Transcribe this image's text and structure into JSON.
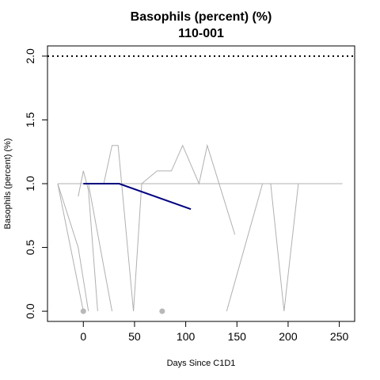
{
  "chart_data": {
    "type": "line",
    "title": "Basophils (percent) (%)",
    "subtitle": "110-001",
    "xlabel": "Days Since C1D1",
    "ylabel": "Basophils (percent) (%)",
    "xlim": [
      -35,
      265
    ],
    "ylim": [
      -0.08,
      2.08
    ],
    "x_ticks": [
      0,
      50,
      100,
      150,
      200,
      250
    ],
    "y_ticks": [
      0.0,
      0.5,
      1.0,
      1.5,
      2.0
    ],
    "y_tick_labels": [
      "0.0",
      "0.5",
      "1.0",
      "1.5",
      "2.0"
    ],
    "reference_line": {
      "y": 2.0,
      "style": "dotted",
      "color": "#000000"
    },
    "background_series": [
      {
        "color": "#b0b0b0",
        "points": [
          [
            -25,
            1.0
          ],
          [
            0,
            0.0
          ]
        ]
      },
      {
        "color": "#b0b0b0",
        "points": [
          [
            -25,
            1.0
          ],
          [
            -5,
            0.5
          ],
          [
            5,
            0.0
          ]
        ]
      },
      {
        "color": "#b0b0b0",
        "points": [
          [
            -5,
            0.9
          ],
          [
            0,
            1.1
          ],
          [
            5,
            0.95
          ],
          [
            14,
            0.0
          ]
        ]
      },
      {
        "color": "#b0b0b0",
        "points": [
          [
            5,
            1.0
          ],
          [
            28,
            0.0
          ]
        ]
      },
      {
        "color": "#b0b0b0",
        "points": [
          [
            20,
            1.0
          ],
          [
            28,
            1.3
          ],
          [
            34,
            1.3
          ],
          [
            49,
            0.0
          ],
          [
            57,
            1.0
          ],
          [
            72,
            1.1
          ],
          [
            86,
            1.1
          ],
          [
            97,
            1.3
          ],
          [
            113,
            1.0
          ],
          [
            121,
            1.3
          ],
          [
            148,
            0.6
          ]
        ]
      },
      {
        "color": "#b0b0b0",
        "points": [
          [
            -25,
            1.0
          ],
          [
            253,
            1.0
          ]
        ]
      },
      {
        "color": "#b0b0b0",
        "points": [
          [
            140,
            0.0
          ],
          [
            175,
            1.0
          ]
        ]
      },
      {
        "color": "#b0b0b0",
        "points": [
          [
            183,
            1.0
          ],
          [
            196,
            0.0
          ],
          [
            210,
            1.0
          ]
        ]
      }
    ],
    "highlight_series": {
      "name": "110-001",
      "color": "#000080",
      "points": [
        [
          0,
          1.0
        ],
        [
          35,
          1.0
        ],
        [
          105,
          0.8
        ]
      ]
    },
    "markers": {
      "color": "#b8b8b8",
      "points": [
        [
          0,
          0.0
        ],
        [
          77,
          0.0
        ]
      ]
    }
  }
}
